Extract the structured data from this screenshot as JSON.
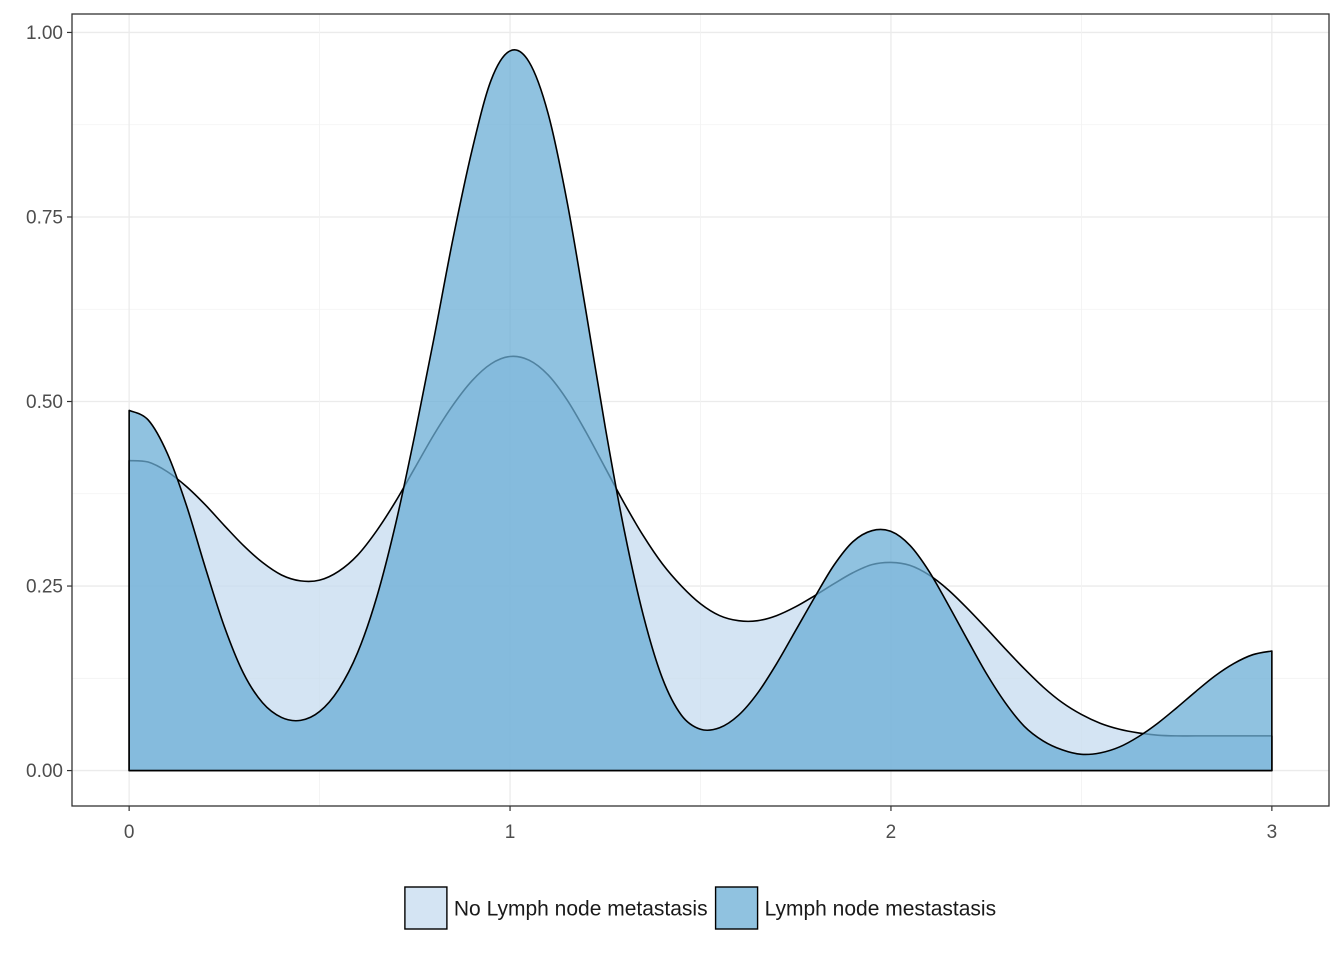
{
  "chart_data": {
    "type": "area",
    "title": "",
    "xlabel": "",
    "ylabel": "",
    "xlim": [
      -0.15,
      3.15
    ],
    "ylim": [
      -0.048,
      1.025
    ],
    "x_ticks": [
      0,
      1,
      2,
      3
    ],
    "x_tick_labels": [
      "0",
      "1",
      "2",
      "3"
    ],
    "y_ticks": [
      0,
      0.25,
      0.5,
      0.75,
      1.0
    ],
    "y_tick_labels": [
      "0.00",
      "0.25",
      "0.50",
      "0.75",
      "1.00"
    ],
    "grid": true,
    "legend_position": "bottom",
    "series": [
      {
        "name": "No Lymph node metastasis",
        "color": "#c6dbef",
        "opacity": 0.75,
        "points": [
          [
            0,
            0.42
          ],
          [
            0.05,
            0.418
          ],
          [
            0.1,
            0.405
          ],
          [
            0.15,
            0.385
          ],
          [
            0.2,
            0.36
          ],
          [
            0.25,
            0.332
          ],
          [
            0.3,
            0.305
          ],
          [
            0.35,
            0.282
          ],
          [
            0.4,
            0.265
          ],
          [
            0.45,
            0.257
          ],
          [
            0.5,
            0.258
          ],
          [
            0.55,
            0.27
          ],
          [
            0.6,
            0.292
          ],
          [
            0.65,
            0.325
          ],
          [
            0.7,
            0.365
          ],
          [
            0.75,
            0.41
          ],
          [
            0.8,
            0.455
          ],
          [
            0.85,
            0.495
          ],
          [
            0.9,
            0.528
          ],
          [
            0.95,
            0.551
          ],
          [
            1.0,
            0.561
          ],
          [
            1.05,
            0.556
          ],
          [
            1.1,
            0.536
          ],
          [
            1.15,
            0.502
          ],
          [
            1.2,
            0.458
          ],
          [
            1.25,
            0.41
          ],
          [
            1.3,
            0.362
          ],
          [
            1.35,
            0.318
          ],
          [
            1.4,
            0.28
          ],
          [
            1.45,
            0.25
          ],
          [
            1.5,
            0.226
          ],
          [
            1.55,
            0.21
          ],
          [
            1.6,
            0.203
          ],
          [
            1.65,
            0.203
          ],
          [
            1.7,
            0.21
          ],
          [
            1.75,
            0.222
          ],
          [
            1.8,
            0.237
          ],
          [
            1.85,
            0.253
          ],
          [
            1.9,
            0.268
          ],
          [
            1.95,
            0.279
          ],
          [
            2.0,
            0.282
          ],
          [
            2.05,
            0.278
          ],
          [
            2.1,
            0.265
          ],
          [
            2.15,
            0.245
          ],
          [
            2.2,
            0.22
          ],
          [
            2.25,
            0.193
          ],
          [
            2.3,
            0.165
          ],
          [
            2.35,
            0.138
          ],
          [
            2.4,
            0.113
          ],
          [
            2.45,
            0.092
          ],
          [
            2.5,
            0.076
          ],
          [
            2.55,
            0.064
          ],
          [
            2.6,
            0.056
          ],
          [
            2.65,
            0.051
          ],
          [
            2.7,
            0.048
          ],
          [
            2.75,
            0.047
          ],
          [
            2.8,
            0.047
          ],
          [
            2.9,
            0.047
          ],
          [
            3.0,
            0.047
          ]
        ]
      },
      {
        "name": "Lymph node mestastasis",
        "color": "#6baed6",
        "opacity": 0.75,
        "points": [
          [
            0,
            0.488
          ],
          [
            0.05,
            0.475
          ],
          [
            0.1,
            0.43
          ],
          [
            0.15,
            0.36
          ],
          [
            0.2,
            0.275
          ],
          [
            0.25,
            0.195
          ],
          [
            0.3,
            0.132
          ],
          [
            0.35,
            0.092
          ],
          [
            0.4,
            0.072
          ],
          [
            0.45,
            0.068
          ],
          [
            0.5,
            0.08
          ],
          [
            0.55,
            0.11
          ],
          [
            0.6,
            0.16
          ],
          [
            0.65,
            0.235
          ],
          [
            0.7,
            0.335
          ],
          [
            0.75,
            0.455
          ],
          [
            0.8,
            0.585
          ],
          [
            0.85,
            0.72
          ],
          [
            0.9,
            0.84
          ],
          [
            0.95,
            0.935
          ],
          [
            1.0,
            0.975
          ],
          [
            1.05,
            0.96
          ],
          [
            1.1,
            0.89
          ],
          [
            1.15,
            0.77
          ],
          [
            1.2,
            0.62
          ],
          [
            1.25,
            0.465
          ],
          [
            1.3,
            0.325
          ],
          [
            1.35,
            0.21
          ],
          [
            1.4,
            0.125
          ],
          [
            1.45,
            0.075
          ],
          [
            1.5,
            0.056
          ],
          [
            1.55,
            0.058
          ],
          [
            1.6,
            0.075
          ],
          [
            1.65,
            0.105
          ],
          [
            1.7,
            0.145
          ],
          [
            1.75,
            0.19
          ],
          [
            1.8,
            0.235
          ],
          [
            1.85,
            0.278
          ],
          [
            1.9,
            0.31
          ],
          [
            1.95,
            0.325
          ],
          [
            2.0,
            0.324
          ],
          [
            2.05,
            0.305
          ],
          [
            2.1,
            0.27
          ],
          [
            2.15,
            0.225
          ],
          [
            2.2,
            0.178
          ],
          [
            2.25,
            0.132
          ],
          [
            2.3,
            0.092
          ],
          [
            2.35,
            0.06
          ],
          [
            2.4,
            0.04
          ],
          [
            2.45,
            0.028
          ],
          [
            2.5,
            0.022
          ],
          [
            2.55,
            0.024
          ],
          [
            2.6,
            0.032
          ],
          [
            2.65,
            0.046
          ],
          [
            2.7,
            0.064
          ],
          [
            2.75,
            0.085
          ],
          [
            2.8,
            0.107
          ],
          [
            2.85,
            0.128
          ],
          [
            2.9,
            0.145
          ],
          [
            2.95,
            0.157
          ],
          [
            3.0,
            0.162
          ]
        ]
      }
    ]
  }
}
